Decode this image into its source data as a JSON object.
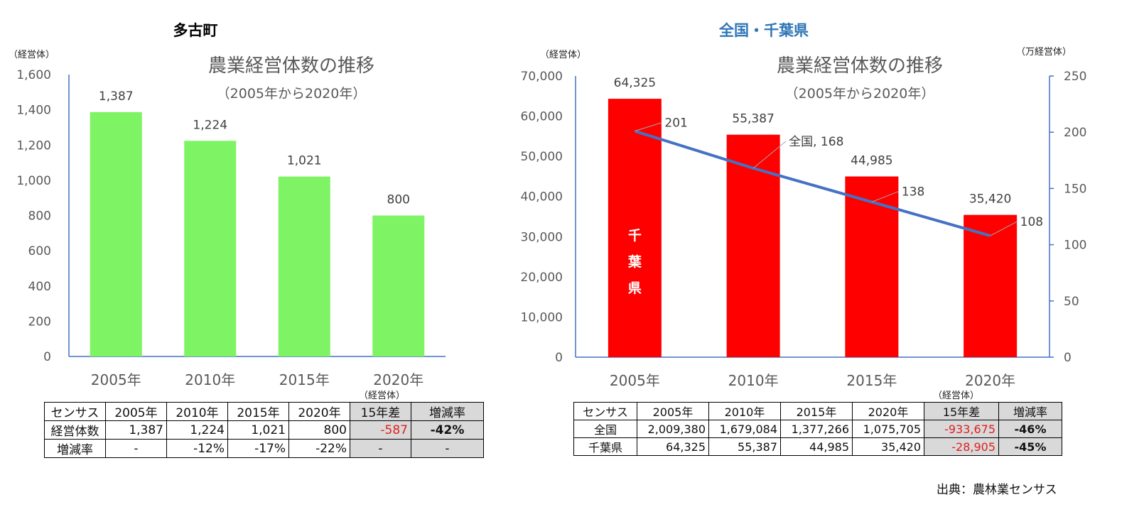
{
  "left": {
    "panel_title": "多古町",
    "unit": "（経営体）",
    "title": "農業経営体数の推移",
    "subtitle": "（2005年から2020年）",
    "table_unit": "（経営体）",
    "table": {
      "header": [
        "センサス",
        "2005年",
        "2010年",
        "2015年",
        "2020年",
        "15年差",
        "増減率"
      ],
      "rows": [
        [
          "経営体数",
          "1,387",
          "1,224",
          "1,021",
          "800",
          "-587",
          "-42%"
        ],
        [
          "増減率",
          "-",
          "-12%",
          "-17%",
          "-22%",
          "-",
          "-"
        ]
      ]
    }
  },
  "right": {
    "panel_title": "全国・千葉県",
    "unit_left": "（経営体）",
    "unit_right": "（万経営体）",
    "title": "農業経営体数の推移",
    "subtitle": "（2005年から2020年）",
    "bar_label": "千\n葉\n県",
    "table_unit": "（経営体）",
    "table": {
      "header": [
        "センサス",
        "2005年",
        "2010年",
        "2015年",
        "2020年",
        "15年差",
        "増減率"
      ],
      "rows": [
        [
          "全国",
          "2,009,380",
          "1,679,084",
          "1,377,266",
          "1,075,705",
          "-933,675",
          "-46%"
        ],
        [
          "千葉県",
          "64,325",
          "55,387",
          "44,985",
          "35,420",
          "-28,905",
          "-45%"
        ]
      ]
    },
    "source": "出典：農林業センサス"
  },
  "colors": {
    "left_bar": "#7ef464",
    "right_bar": "#ff0000",
    "line": "#4472c4",
    "panel_title_right": "#2e75b6"
  },
  "chart_data": [
    {
      "type": "bar",
      "title": "農業経営体数の推移",
      "subtitle": "（2005年から2020年）",
      "categories": [
        "2005年",
        "2010年",
        "2015年",
        "2020年"
      ],
      "values": [
        1387,
        1224,
        1021,
        800
      ],
      "value_labels": [
        "1,387",
        "1,224",
        "1,021",
        "800"
      ],
      "ylim": [
        0,
        1600
      ],
      "yticks": [
        0,
        200,
        400,
        600,
        800,
        1000,
        1200,
        1400,
        1600
      ],
      "ytick_labels": [
        "0",
        "200",
        "400",
        "600",
        "800",
        "1,000",
        "1,200",
        "1,400",
        "1,600"
      ],
      "ylabel": "（経営体）",
      "grid": false
    },
    {
      "type": "bar",
      "title": "農業経営体数の推移",
      "subtitle": "（2005年から2020年）",
      "categories": [
        "2005年",
        "2010年",
        "2015年",
        "2020年"
      ],
      "series": [
        {
          "name": "千葉県",
          "kind": "bar",
          "axis": "left",
          "values": [
            64325,
            55387,
            44985,
            35420
          ],
          "value_labels": [
            "64,325",
            "55,387",
            "44,985",
            "35,420"
          ]
        },
        {
          "name": "全国",
          "kind": "line",
          "axis": "right",
          "values": [
            201,
            168,
            138,
            108
          ],
          "value_labels": [
            "201",
            "全国, 168",
            "138",
            "108"
          ]
        }
      ],
      "ylim": [
        0,
        70000
      ],
      "yticks": [
        0,
        10000,
        20000,
        30000,
        40000,
        50000,
        60000,
        70000
      ],
      "ytick_labels": [
        "0",
        "10,000",
        "20,000",
        "30,000",
        "40,000",
        "50,000",
        "60,000",
        "70,000"
      ],
      "ylabel": "（経営体）",
      "y2lim": [
        0,
        250
      ],
      "y2ticks": [
        0,
        50,
        100,
        150,
        200,
        250
      ],
      "y2tick_labels": [
        "0",
        "50",
        "100",
        "150",
        "200",
        "250"
      ],
      "y2label": "（万経営体）",
      "grid": false
    }
  ]
}
